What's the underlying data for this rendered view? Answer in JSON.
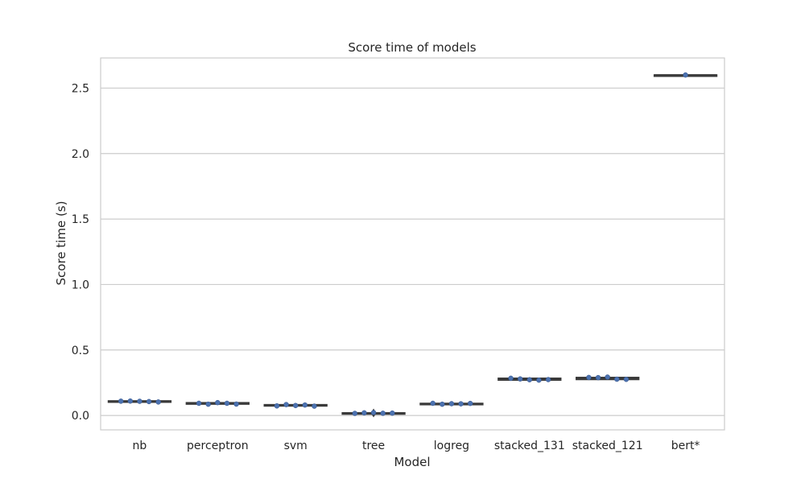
{
  "chart_data": {
    "type": "box",
    "title": "Score time of models",
    "xlabel": "Model",
    "ylabel": "Score time (s)",
    "ylim": [
      -0.11,
      2.73
    ],
    "yticks": [
      0.0,
      0.5,
      1.0,
      1.5,
      2.0,
      2.5
    ],
    "ytick_labels": [
      "0.0",
      "0.5",
      "1.0",
      "1.5",
      "2.0",
      "2.5"
    ],
    "grid": "horizontal",
    "categories": [
      "nb",
      "perceptron",
      "svm",
      "tree",
      "logreg",
      "stacked_131",
      "stacked_121",
      "bert*"
    ],
    "box_color": "#4c72b0",
    "line_color": "#3a3a3a",
    "point_color": "#4c72b0",
    "boxes": [
      {
        "q1": 0.105,
        "median": 0.108,
        "q3": 0.111,
        "whisker_low": 0.102,
        "whisker_high": 0.113
      },
      {
        "q1": 0.087,
        "median": 0.09,
        "q3": 0.097,
        "whisker_low": 0.084,
        "whisker_high": 0.1
      },
      {
        "q1": 0.073,
        "median": 0.077,
        "q3": 0.082,
        "whisker_low": 0.07,
        "whisker_high": 0.085
      },
      {
        "q1": 0.016,
        "median": 0.018,
        "q3": 0.02,
        "whisker_low": 0.014,
        "whisker_high": 0.022,
        "outliers": [
          0.028,
          0.01
        ]
      },
      {
        "q1": 0.088,
        "median": 0.09,
        "q3": 0.092,
        "whisker_low": 0.086,
        "whisker_high": 0.093
      },
      {
        "q1": 0.27,
        "median": 0.276,
        "q3": 0.284,
        "whisker_low": 0.266,
        "whisker_high": 0.286
      },
      {
        "q1": 0.275,
        "median": 0.283,
        "q3": 0.29,
        "whisker_low": 0.272,
        "whisker_high": 0.292
      },
      {
        "q1": 2.6,
        "median": 2.6,
        "q3": 2.6,
        "whisker_low": 2.6,
        "whisker_high": 2.6
      }
    ],
    "points": [
      [
        0.109,
        0.11,
        0.108,
        0.106,
        0.103
      ],
      [
        0.093,
        0.086,
        0.098,
        0.093,
        0.087
      ],
      [
        0.073,
        0.083,
        0.076,
        0.08,
        0.071
      ],
      [
        0.016,
        0.02,
        0.022,
        0.017,
        0.018
      ],
      [
        0.093,
        0.086,
        0.09,
        0.089,
        0.092
      ],
      [
        0.284,
        0.279,
        0.273,
        0.27,
        0.274
      ],
      [
        0.29,
        0.289,
        0.293,
        0.277,
        0.276
      ],
      [
        2.6
      ]
    ]
  }
}
